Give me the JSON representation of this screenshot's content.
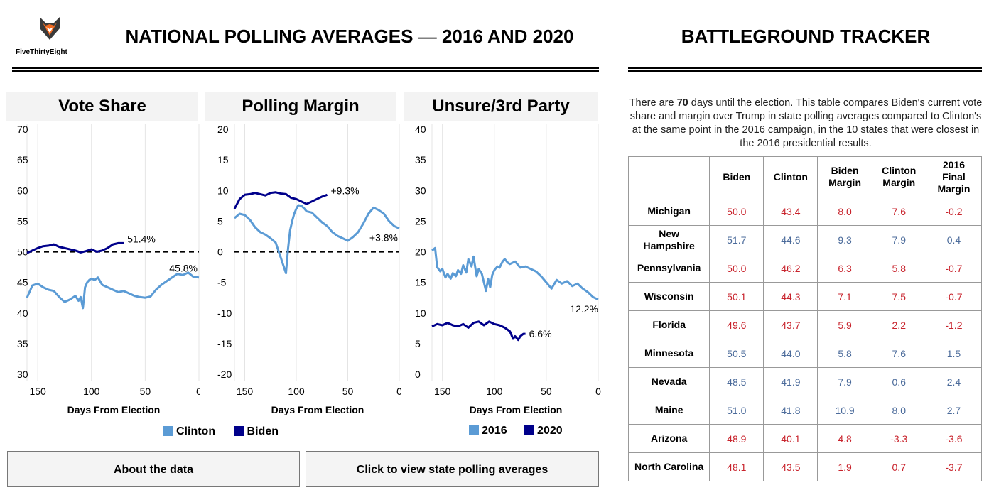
{
  "logo": {
    "text": "FiveThirtyEight"
  },
  "header": {
    "left_title_main": "NATIONAL POLLING AVERAGES",
    "left_title_dash": "—",
    "left_title_years": "2016 AND 2020",
    "right_title": "BATTLEGROUND TRACKER"
  },
  "colors": {
    "clinton": "#5b9bd5",
    "biden": "#00008b",
    "red": "#c8232c",
    "blue": "#4a6a9a"
  },
  "legend_left": {
    "items": [
      {
        "label": "Clinton",
        "color": "#5b9bd5"
      },
      {
        "label": "Biden",
        "color": "#00008b"
      }
    ]
  },
  "legend_right": {
    "items": [
      {
        "label": "2016",
        "color": "#5b9bd5"
      },
      {
        "label": "2020",
        "color": "#00008b"
      }
    ]
  },
  "chart_data": [
    {
      "type": "line",
      "title": "Vote Share",
      "xlabel": "Days From Election",
      "xlim": [
        160,
        0
      ],
      "ylim": [
        30,
        70
      ],
      "xticks": [
        150,
        100,
        50,
        0
      ],
      "yticks": [
        70,
        65,
        60,
        55,
        50,
        45,
        40,
        35,
        30
      ],
      "reference_line": 50,
      "grid": true,
      "series": [
        {
          "name": "Clinton",
          "end_label": "45.8%",
          "x": [
            160,
            155,
            150,
            145,
            140,
            135,
            130,
            125,
            120,
            115,
            112,
            110,
            108,
            106,
            104,
            102,
            100,
            97,
            94,
            90,
            85,
            80,
            75,
            70,
            65,
            60,
            55,
            50,
            45,
            40,
            35,
            30,
            25,
            20,
            15,
            10,
            5,
            0
          ],
          "y": [
            42.5,
            44.5,
            44.8,
            44.2,
            43.8,
            43.6,
            42.6,
            41.8,
            42.2,
            42.8,
            42.0,
            42.6,
            40.8,
            44.2,
            45.0,
            45.4,
            45.6,
            45.4,
            45.8,
            44.6,
            44.2,
            43.8,
            43.4,
            43.6,
            43.2,
            42.8,
            42.6,
            42.5,
            42.7,
            43.8,
            44.6,
            45.2,
            45.8,
            46.4,
            46.2,
            46.6,
            45.9,
            45.8
          ]
        },
        {
          "name": "Biden",
          "end_label": "51.4%",
          "x": [
            160,
            155,
            150,
            145,
            140,
            135,
            130,
            125,
            120,
            115,
            110,
            105,
            100,
            95,
            90,
            85,
            80,
            75,
            70
          ],
          "y": [
            49.8,
            50.2,
            50.6,
            50.9,
            51.0,
            51.2,
            50.8,
            50.6,
            50.4,
            50.2,
            49.9,
            50.1,
            50.4,
            50.0,
            50.2,
            50.6,
            51.2,
            51.4,
            51.4
          ]
        }
      ]
    },
    {
      "type": "line",
      "title": "Polling Margin",
      "xlabel": "Days From Election",
      "xlim": [
        160,
        0
      ],
      "ylim": [
        -20,
        20
      ],
      "xticks": [
        150,
        100,
        50,
        0
      ],
      "yticks": [
        20,
        15,
        10,
        5,
        0,
        -5,
        -10,
        -15,
        -20
      ],
      "reference_line": 0,
      "grid": true,
      "series": [
        {
          "name": "Clinton",
          "end_label": "+3.8%",
          "x": [
            160,
            155,
            150,
            145,
            140,
            135,
            130,
            125,
            120,
            115,
            112,
            110,
            108,
            106,
            104,
            102,
            100,
            98,
            95,
            92,
            90,
            85,
            80,
            75,
            70,
            65,
            60,
            55,
            50,
            45,
            40,
            35,
            30,
            25,
            20,
            15,
            10,
            5,
            0
          ],
          "y": [
            5.5,
            6.2,
            6.0,
            5.2,
            4.0,
            3.2,
            2.8,
            2.2,
            1.5,
            -1.0,
            -2.5,
            -3.5,
            0.5,
            3.5,
            5.0,
            6.2,
            7.0,
            7.6,
            7.5,
            7.0,
            6.6,
            6.4,
            5.6,
            4.8,
            4.2,
            3.2,
            2.6,
            2.2,
            1.8,
            2.4,
            3.2,
            4.6,
            6.2,
            7.2,
            6.8,
            6.2,
            5.0,
            4.2,
            3.8
          ]
        },
        {
          "name": "Biden",
          "end_label": "+9.3%",
          "x": [
            160,
            155,
            150,
            145,
            140,
            135,
            130,
            125,
            120,
            115,
            110,
            105,
            100,
            95,
            90,
            85,
            80,
            75,
            70
          ],
          "y": [
            7.0,
            8.6,
            9.3,
            9.4,
            9.6,
            9.4,
            9.2,
            9.6,
            9.7,
            9.5,
            9.4,
            8.8,
            8.6,
            8.2,
            7.8,
            8.2,
            8.6,
            9.0,
            9.3
          ]
        }
      ]
    },
    {
      "type": "line",
      "title": "Unsure/3rd Party",
      "xlabel": "Days From Election",
      "xlim": [
        160,
        0
      ],
      "ylim": [
        0,
        40
      ],
      "xticks": [
        150,
        100,
        50,
        0
      ],
      "yticks": [
        40,
        35,
        30,
        25,
        20,
        15,
        10,
        5,
        0
      ],
      "grid": true,
      "series": [
        {
          "name": "2016",
          "end_label": "12.2%",
          "x": [
            160,
            157,
            155,
            152,
            150,
            147,
            145,
            142,
            140,
            137,
            135,
            132,
            130,
            127,
            125,
            122,
            120,
            117,
            115,
            112,
            110,
            108,
            106,
            104,
            102,
            100,
            97,
            95,
            92,
            90,
            87,
            85,
            80,
            75,
            70,
            65,
            60,
            55,
            50,
            45,
            40,
            35,
            30,
            25,
            20,
            15,
            10,
            5,
            0
          ],
          "y": [
            20.2,
            20.6,
            17.5,
            16.8,
            17.2,
            15.8,
            16.4,
            15.6,
            16.5,
            16.0,
            17.0,
            16.4,
            17.8,
            16.6,
            18.8,
            17.6,
            19.2,
            16.0,
            17.2,
            16.4,
            15.0,
            13.6,
            15.6,
            14.2,
            16.2,
            17.0,
            17.6,
            17.4,
            18.4,
            18.8,
            18.2,
            18.0,
            18.4,
            17.4,
            17.6,
            17.2,
            16.8,
            16.0,
            15.0,
            14.0,
            15.4,
            14.8,
            15.2,
            14.4,
            14.8,
            14.0,
            13.4,
            12.6,
            12.2
          ]
        },
        {
          "name": "2020",
          "end_label": "6.6%",
          "x": [
            160,
            155,
            150,
            145,
            140,
            135,
            130,
            125,
            120,
            115,
            110,
            105,
            100,
            95,
            90,
            85,
            82,
            80,
            77,
            75,
            72,
            70
          ],
          "y": [
            7.8,
            8.2,
            8.0,
            8.4,
            8.0,
            7.8,
            8.2,
            7.6,
            8.4,
            8.6,
            8.0,
            8.6,
            8.2,
            8.0,
            7.6,
            7.0,
            5.8,
            6.2,
            5.6,
            6.2,
            6.6,
            6.6
          ]
        }
      ]
    }
  ],
  "battleground": {
    "intro_pre": "There are ",
    "days": "70",
    "intro_post": " days until the election. This table compares Biden's current vote share and margin over Trump in state polling averages compared to Clinton's at the same point in the 2016 campaign, in the 10 states that were closest in the 2016 presidential results.",
    "columns": [
      "",
      "Biden",
      "Clinton",
      "Biden\nMargin",
      "Clinton\nMargin",
      "2016\nFinal\nMargin"
    ],
    "rows": [
      {
        "state": "Michigan",
        "values": [
          "50.0",
          "43.4",
          "8.0",
          "7.6",
          "-0.2"
        ],
        "cls": "red"
      },
      {
        "state": "New\nHampshire",
        "values": [
          "51.7",
          "44.6",
          "9.3",
          "7.9",
          "0.4"
        ],
        "cls": "blue"
      },
      {
        "state": "Pennsylvania",
        "values": [
          "50.0",
          "46.2",
          "6.3",
          "5.8",
          "-0.7"
        ],
        "cls": "red"
      },
      {
        "state": "Wisconsin",
        "values": [
          "50.1",
          "44.3",
          "7.1",
          "7.5",
          "-0.7"
        ],
        "cls": "red"
      },
      {
        "state": "Florida",
        "values": [
          "49.6",
          "43.7",
          "5.9",
          "2.2",
          "-1.2"
        ],
        "cls": "red"
      },
      {
        "state": "Minnesota",
        "values": [
          "50.5",
          "44.0",
          "5.8",
          "7.6",
          "1.5"
        ],
        "cls": "blue"
      },
      {
        "state": "Nevada",
        "values": [
          "48.5",
          "41.9",
          "7.9",
          "0.6",
          "2.4"
        ],
        "cls": "blue"
      },
      {
        "state": "Maine",
        "values": [
          "51.0",
          "41.8",
          "10.9",
          "8.0",
          "2.7"
        ],
        "cls": "blue"
      },
      {
        "state": "Arizona",
        "values": [
          "48.9",
          "40.1",
          "4.8",
          "-3.3",
          "-3.6"
        ],
        "cls": "red"
      },
      {
        "state": "North Carolina",
        "values": [
          "48.1",
          "43.5",
          "1.9",
          "0.7",
          "-3.7"
        ],
        "cls": "red"
      }
    ]
  },
  "buttons": {
    "about": "About the data",
    "state": "Click to view state polling averages"
  }
}
